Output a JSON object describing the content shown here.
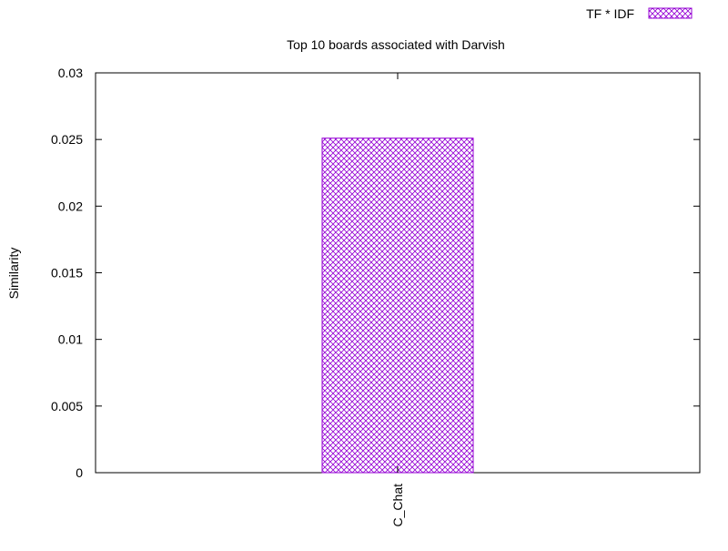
{
  "chart_data": {
    "type": "bar",
    "title": "Top 10 boards associated with Darvish",
    "xlabel": "",
    "ylabel": "Similarity",
    "categories": [
      "C_Chat"
    ],
    "series": [
      {
        "name": "TF * IDF",
        "values": [
          0.0251
        ],
        "color": "#9400d3"
      }
    ],
    "ylim": [
      0,
      0.03
    ],
    "yticks": [
      0,
      0.005,
      0.01,
      0.015,
      0.02,
      0.025,
      0.03
    ],
    "ytick_labels": [
      "0",
      "0.005",
      "0.01",
      "0.015",
      "0.02",
      "0.025",
      "0.03"
    ],
    "legend_position": "top-right",
    "grid": false
  }
}
